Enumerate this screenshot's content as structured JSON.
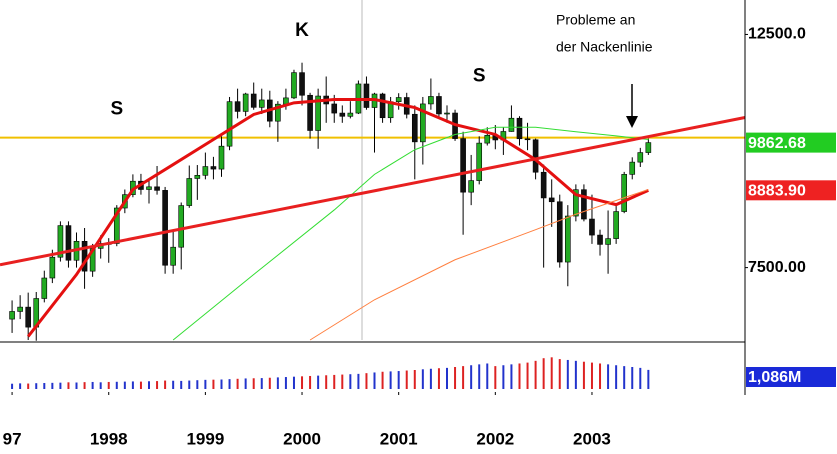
{
  "chart_data": {
    "type": "candlestick",
    "y_scale": "log",
    "xlim": [
      -1.5,
      91
    ],
    "ylim": [
      6400,
      13480
    ],
    "yticks": [
      {
        "value": 12500,
        "label": "12500.0"
      },
      {
        "value": 7500,
        "label": "7500.00"
      }
    ],
    "xticks": [
      {
        "value": 0,
        "label": "97"
      },
      {
        "value": 12,
        "label": "1998"
      },
      {
        "value": 24,
        "label": "1999"
      },
      {
        "value": 36,
        "label": "2000"
      },
      {
        "value": 48,
        "label": "2001"
      },
      {
        "value": 60,
        "label": "2002"
      },
      {
        "value": 72,
        "label": "2003"
      }
    ],
    "up_color": "#22aa22",
    "down_color": "#111111",
    "open": [
      6700,
      6813,
      6878,
      6583,
      7009,
      7331,
      7673,
      8223,
      7622,
      7945,
      7442,
      7823,
      7908,
      7907,
      8546,
      8800,
      9063,
      8900,
      8952,
      8883,
      7539,
      7843,
      8592,
      9117,
      9181,
      9359,
      9307,
      9786,
      10789,
      10560,
      10971,
      10655,
      10829,
      10337,
      10729,
      10878,
      11497,
      10941,
      10128,
      10922,
      10734,
      10522,
      10448,
      10522,
      11215,
      10651,
      10971,
      10415,
      10788,
      10887,
      10495,
      9879,
      10735,
      10912,
      10502,
      10523,
      9950,
      8848,
      9075,
      9852,
      10022,
      9920,
      10106,
      10404,
      9946,
      9925,
      9243,
      8737,
      8664,
      7592,
      8397,
      8896,
      8342,
      8054,
      7891,
      7992,
      8480,
      9200,
      9450,
      9650
    ],
    "high": [
      6980,
      7060,
      7100,
      7110,
      7450,
      7800,
      8300,
      8300,
      8100,
      8180,
      7900,
      8050,
      8000,
      8600,
      8900,
      9200,
      9210,
      9100,
      9370,
      8950,
      8150,
      8650,
      9380,
      9390,
      9650,
      9560,
      10000,
      10900,
      11100,
      11000,
      11250,
      11100,
      11050,
      10800,
      11100,
      11570,
      11750,
      11000,
      11100,
      11400,
      10950,
      10700,
      10800,
      11300,
      11400,
      11000,
      11000,
      10900,
      10990,
      11000,
      10700,
      10900,
      11350,
      11000,
      10700,
      10600,
      10100,
      9600,
      10000,
      10200,
      10250,
      10200,
      10700,
      10450,
      10300,
      9950,
      9400,
      9100,
      8800,
      8600,
      9000,
      9000,
      8800,
      8150,
      8500,
      8600,
      9250,
      9550,
      9750,
      9950
    ],
    "low": [
      6500,
      6700,
      6400,
      6390,
      6950,
      7250,
      7600,
      7500,
      7500,
      7160,
      7350,
      7650,
      7580,
      7860,
      8450,
      8750,
      8800,
      8630,
      8800,
      7400,
      7400,
      7470,
      8550,
      8700,
      9100,
      9100,
      9150,
      9700,
      10400,
      10450,
      10600,
      10500,
      10200,
      9880,
      10600,
      10850,
      10700,
      9950,
      9730,
      10300,
      10300,
      10300,
      10400,
      10500,
      10600,
      9650,
      10300,
      10300,
      10600,
      10400,
      9100,
      9400,
      10600,
      10400,
      10300,
      9900,
      8060,
      8600,
      9000,
      9800,
      9720,
      9600,
      10100,
      9800,
      9700,
      9100,
      7500,
      8200,
      7500,
      7200,
      8300,
      8300,
      7900,
      7700,
      7400,
      7900,
      8450,
      9100,
      9350,
      9600
    ],
    "close": [
      6813,
      6878,
      6583,
      7009,
      7331,
      7673,
      8223,
      7622,
      7945,
      7442,
      7823,
      7908,
      7907,
      8546,
      8800,
      9063,
      8900,
      8952,
      8883,
      7539,
      7843,
      8592,
      9117,
      9181,
      9359,
      9307,
      9786,
      10789,
      10560,
      10971,
      10655,
      10829,
      10337,
      10729,
      10878,
      11497,
      10941,
      10128,
      10922,
      10734,
      10522,
      10448,
      10522,
      11215,
      10651,
      10971,
      10415,
      10788,
      10887,
      10495,
      9879,
      10735,
      10912,
      10502,
      10523,
      9950,
      8848,
      9075,
      9852,
      10022,
      9920,
      10106,
      10404,
      9946,
      9925,
      9243,
      8737,
      8664,
      7592,
      8397,
      8896,
      8342,
      8054,
      7891,
      7992,
      8480,
      9200,
      9450,
      9650,
      9862.68
    ],
    "volume": {
      "ylim": [
        0,
        2500
      ],
      "values": [
        300,
        320,
        310,
        330,
        340,
        350,
        360,
        380,
        370,
        390,
        400,
        380,
        400,
        410,
        420,
        430,
        420,
        440,
        450,
        480,
        470,
        460,
        480,
        500,
        520,
        530,
        540,
        560,
        580,
        600,
        610,
        620,
        640,
        660,
        680,
        700,
        720,
        740,
        760,
        780,
        800,
        820,
        840,
        860,
        900,
        940,
        980,
        1000,
        1020,
        1050,
        1080,
        1120,
        1150,
        1180,
        1200,
        1250,
        1300,
        1350,
        1400,
        1450,
        1300,
        1350,
        1400,
        1450,
        1500,
        1600,
        1750,
        1800,
        1700,
        1650,
        1600,
        1550,
        1500,
        1450,
        1400,
        1350,
        1300,
        1250,
        1200,
        1086
      ],
      "value_labels": {
        "79": "1,086M"
      },
      "up_color": "#2233cc",
      "down_color": "#dd2222"
    },
    "lines": [
      {
        "color": "#e41010",
        "width": 3,
        "x": [
          2,
          8,
          15,
          20,
          25,
          30,
          35,
          40,
          45,
          50,
          55,
          60,
          65,
          70,
          75,
          79
        ],
        "values": [
          6450,
          7387,
          8900,
          9400,
          9930,
          10490,
          10760,
          10840,
          10840,
          10650,
          10260,
          10040,
          9500,
          8800,
          8610,
          8883.9
        ],
        "last_label": "8883.90"
      },
      {
        "color": "#33dd33",
        "width": 1,
        "x": [
          20,
          30,
          40,
          45,
          50,
          55,
          60,
          65,
          70,
          75,
          79
        ],
        "values": [
          6400,
          7387,
          8510,
          9200,
          9710,
          10040,
          10200,
          10200,
          10100,
          10010,
          9930
        ]
      },
      {
        "color": "#ff7f3f",
        "width": 1,
        "x": [
          37,
          45,
          55,
          65,
          70,
          79
        ],
        "values": [
          6400,
          6990,
          7630,
          8150,
          8430,
          8900
        ]
      },
      {
        "color": "#e82020",
        "width": 3,
        "x": [
          -1.5,
          91
        ],
        "values": [
          7546,
          10420
        ]
      }
    ],
    "level": {
      "value": 9970,
      "color": "#f0c000"
    },
    "annotations": [
      {
        "text": "S",
        "x": 13,
        "y": 10600
      },
      {
        "text": "K",
        "x": 36,
        "y": 12600
      },
      {
        "text": "S",
        "x": 58,
        "y": 11400
      }
    ],
    "note": [
      "Probleme an",
      "der Nackenlinie"
    ]
  }
}
